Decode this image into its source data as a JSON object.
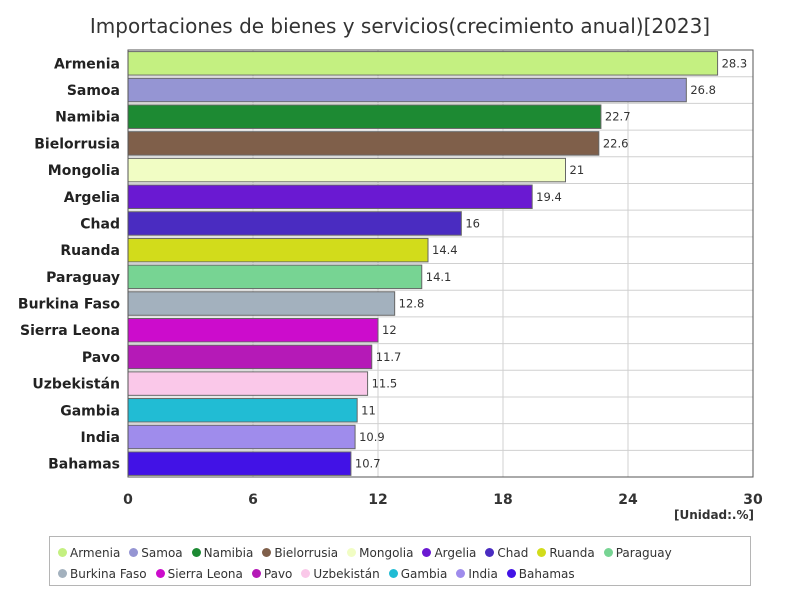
{
  "chart_data": {
    "type": "bar",
    "orientation": "horizontal",
    "title": "Importaciones de bienes y servicios(crecimiento anual)[2023]",
    "unit": "[Unidad:.%]",
    "categories": [
      "Armenia",
      "Samoa",
      "Namibia",
      "Bielorrusia",
      "Mongolia",
      "Argelia",
      "Chad",
      "Ruanda",
      "Paraguay",
      "Burkina Faso",
      "Sierra Leona",
      "Pavo",
      "Uzbekistán",
      "Gambia",
      "India",
      "Bahamas"
    ],
    "values": [
      28.3,
      26.8,
      22.7,
      22.6,
      21,
      19.4,
      16,
      14.4,
      14.1,
      12.8,
      12,
      11.7,
      11.5,
      11,
      10.9,
      10.7
    ],
    "value_labels": [
      "28.3",
      "26.8",
      "22.7",
      "22.6",
      "21",
      "19.4",
      "16",
      "14.4",
      "14.1",
      "12.8",
      "12",
      "11.7",
      "11.5",
      "11",
      "10.9",
      "10.7"
    ],
    "colors": [
      "#c4f081",
      "#9595d3",
      "#1d8a33",
      "#7f5f4a",
      "#f1fdc4",
      "#6a19d2",
      "#4a2cc1",
      "#d2dc1b",
      "#77d493",
      "#a3b1be",
      "#cc0ccc",
      "#b51ab7",
      "#fac8e9",
      "#21bcd4",
      "#9f8cec",
      "#4212e6"
    ],
    "xlim": [
      0,
      30
    ],
    "xticks": [
      "0",
      "6",
      "12",
      "18",
      "24",
      "30"
    ],
    "grid": true,
    "legend_position": "bottom"
  }
}
